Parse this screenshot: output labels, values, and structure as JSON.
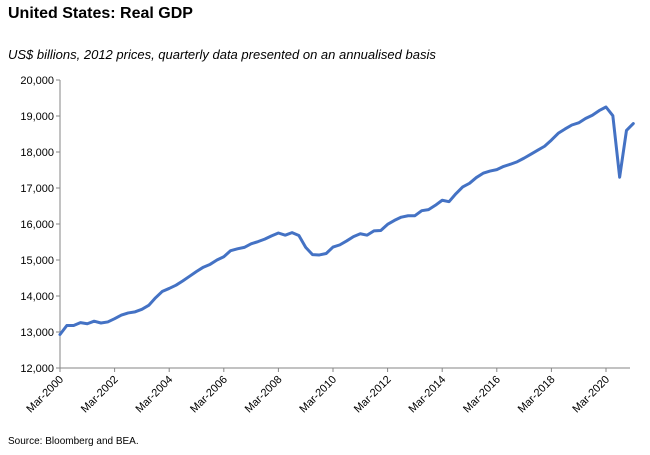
{
  "title": "United States: Real GDP",
  "subtitle": "US$ billions, 2012 prices, quarterly data presented on an annualised basis",
  "source": "Source: Bloomberg and BEA.",
  "chart_data": {
    "type": "line",
    "title": "United States: Real GDP",
    "subtitle": "US$ billions, 2012 prices, quarterly data presented on an annualised basis",
    "xlabel": "",
    "ylabel": "",
    "ylim": [
      12000,
      20000
    ],
    "yticks": [
      12000,
      13000,
      14000,
      15000,
      16000,
      17000,
      18000,
      19000,
      20000
    ],
    "ytick_labels": [
      "12,000",
      "13,000",
      "14,000",
      "15,000",
      "16,000",
      "17,000",
      "18,000",
      "19,000",
      "20,000"
    ],
    "xtick_labels": [
      "Mar-2000",
      "Mar-2002",
      "Mar-2004",
      "Mar-2006",
      "Mar-2008",
      "Mar-2010",
      "Mar-2012",
      "Mar-2014",
      "Mar-2016",
      "Mar-2018",
      "Mar-2020"
    ],
    "grid": false,
    "legend": "none",
    "line_color": "#4472C4",
    "x": [
      "Mar-2000",
      "Jun-2000",
      "Sep-2000",
      "Dec-2000",
      "Mar-2001",
      "Jun-2001",
      "Sep-2001",
      "Dec-2001",
      "Mar-2002",
      "Jun-2002",
      "Sep-2002",
      "Dec-2002",
      "Mar-2003",
      "Jun-2003",
      "Sep-2003",
      "Dec-2003",
      "Mar-2004",
      "Jun-2004",
      "Sep-2004",
      "Dec-2004",
      "Mar-2005",
      "Jun-2005",
      "Sep-2005",
      "Dec-2005",
      "Mar-2006",
      "Jun-2006",
      "Sep-2006",
      "Dec-2006",
      "Mar-2007",
      "Jun-2007",
      "Sep-2007",
      "Dec-2007",
      "Mar-2008",
      "Jun-2008",
      "Sep-2008",
      "Dec-2008",
      "Mar-2009",
      "Jun-2009",
      "Sep-2009",
      "Dec-2009",
      "Mar-2010",
      "Jun-2010",
      "Sep-2010",
      "Dec-2010",
      "Mar-2011",
      "Jun-2011",
      "Sep-2011",
      "Dec-2011",
      "Mar-2012",
      "Jun-2012",
      "Sep-2012",
      "Dec-2012",
      "Mar-2013",
      "Jun-2013",
      "Sep-2013",
      "Dec-2013",
      "Mar-2014",
      "Jun-2014",
      "Sep-2014",
      "Dec-2014",
      "Mar-2015",
      "Jun-2015",
      "Sep-2015",
      "Dec-2015",
      "Mar-2016",
      "Jun-2016",
      "Sep-2016",
      "Dec-2016",
      "Mar-2017",
      "Jun-2017",
      "Sep-2017",
      "Dec-2017",
      "Mar-2018",
      "Jun-2018",
      "Sep-2018",
      "Dec-2018",
      "Mar-2019",
      "Jun-2019",
      "Sep-2019",
      "Dec-2019",
      "Mar-2020",
      "Jun-2020",
      "Sep-2020",
      "Dec-2020",
      "Mar-2021"
    ],
    "series": [
      {
        "values": [
          12930,
          13180,
          13180,
          13260,
          13230,
          13300,
          13250,
          13280,
          13370,
          13470,
          13530,
          13560,
          13630,
          13740,
          13950,
          14130,
          14210,
          14300,
          14420,
          14550,
          14680,
          14800,
          14880,
          15000,
          15090,
          15260,
          15310,
          15350,
          15450,
          15510,
          15580,
          15670,
          15750,
          15690,
          15760,
          15680,
          15350,
          15150,
          15140,
          15180,
          15360,
          15420,
          15530,
          15650,
          15730,
          15690,
          15810,
          15820,
          15990,
          16100,
          16190,
          16230,
          16230,
          16370,
          16400,
          16520,
          16660,
          16620,
          16840,
          17030,
          17130,
          17290,
          17410,
          17470,
          17510,
          17600,
          17660,
          17730,
          17830,
          17940,
          18050,
          18160,
          18330,
          18520,
          18640,
          18750,
          18810,
          18930,
          19020,
          19150,
          19250,
          19010,
          17300,
          18600,
          18790
        ]
      }
    ]
  }
}
